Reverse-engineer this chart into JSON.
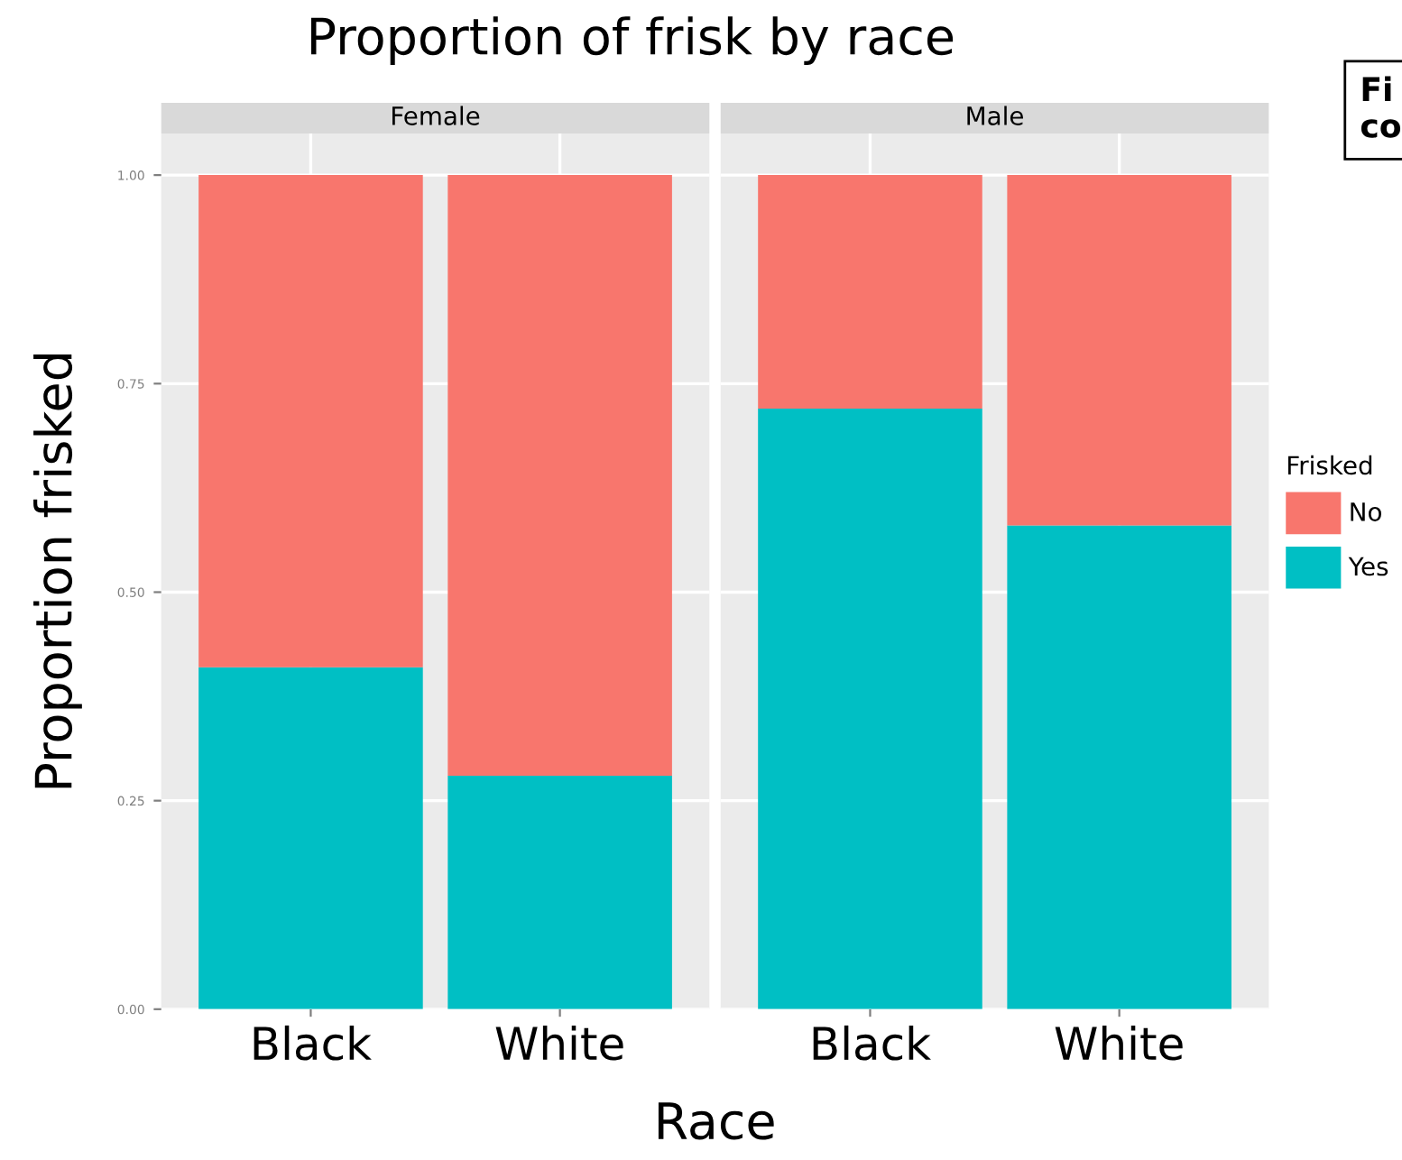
{
  "chart_data": [
    {
      "type": "bar",
      "title": "Proportion of frisk by race",
      "subtitle": "Female",
      "xlabel": "Race",
      "ylabel": "Proportion frisked",
      "categories": [
        "Black",
        "White"
      ],
      "stacked": true,
      "series": [
        {
          "name": "Yes",
          "color": "#00bfc4",
          "values": [
            0.41,
            0.28
          ]
        },
        {
          "name": "No",
          "color": "#f8766d",
          "values": [
            0.59,
            0.72
          ]
        }
      ],
      "ylim": [
        0,
        1.05
      ],
      "yticks": [
        {
          "value": 0,
          "label": "0.00"
        },
        {
          "value": 0.25,
          "label": "0.25"
        },
        {
          "value": 0.5,
          "label": "0.50"
        },
        {
          "value": 0.75,
          "label": "0.75"
        },
        {
          "value": 1,
          "label": "1.00"
        }
      ],
      "grid": true,
      "legend": "right",
      "legend_title": "Frisked"
    },
    {
      "type": "bar",
      "subtitle": "Male",
      "categories": [
        "Black",
        "White"
      ],
      "stacked": true,
      "series": [
        {
          "color": "#00bfc4",
          "values": [
            0.72,
            0.58
          ]
        },
        {
          "color": "#f8766d",
          "values": [
            0.28,
            0.42
          ]
        }
      ],
      "ylim": [
        0,
        1.05
      ],
      "yticks": [
        {
          "value": 0,
          "label": null
        },
        {
          "value": 0.25,
          "label": null
        },
        {
          "value": 0.5,
          "label": null
        },
        {
          "value": 0.75,
          "label": null
        },
        {
          "value": 1,
          "label": null
        }
      ],
      "grid": true,
      "tick_labels": "x",
      "annotations": [
        "Fi",
        "co"
      ]
    }
  ]
}
